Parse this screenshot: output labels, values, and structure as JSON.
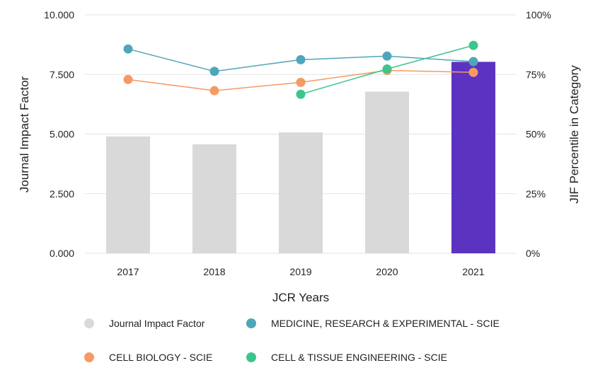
{
  "chart_data": {
    "type": "bar+line",
    "xlabel": "JCR Years",
    "ylabel": "Journal Impact Factor",
    "y2label": "JIF Percentile in Category",
    "categories": [
      "2017",
      "2018",
      "2019",
      "2020",
      "2021"
    ],
    "ylim": [
      0,
      10
    ],
    "y_ticks": [
      "0.000",
      "2.500",
      "5.000",
      "7.500",
      "10.000"
    ],
    "y_tick_values": [
      0,
      2.5,
      5,
      7.5,
      10
    ],
    "y2lim": [
      0,
      100
    ],
    "y2_ticks": [
      "0%",
      "25%",
      "50%",
      "75%",
      "100%"
    ],
    "y2_tick_values": [
      0,
      25,
      50,
      75,
      100
    ],
    "grid": true,
    "legend_placement": "bottom",
    "bars": {
      "name": "Journal Impact Factor",
      "values": [
        4.9,
        4.57,
        5.07,
        6.78,
        8.03
      ],
      "color": "#d9d9d9",
      "highlight_color": "#5c33c0",
      "highlight_index": 4
    },
    "series": [
      {
        "name": "MEDICINE, RESEARCH & EXPERIMENTAL - SCIE",
        "values": [
          85.7,
          76.3,
          81.2,
          82.7,
          80.4
        ],
        "color": "#4fa6b8"
      },
      {
        "name": "CELL BIOLOGY - SCIE",
        "values": [
          72.9,
          68.2,
          71.7,
          76.7,
          75.9
        ],
        "color": "#f59a63"
      },
      {
        "name": "CELL & TISSUE ENGINEERING - SCIE",
        "values": [
          null,
          null,
          66.7,
          77.3,
          87.2
        ],
        "color": "#3fc48c"
      }
    ]
  }
}
